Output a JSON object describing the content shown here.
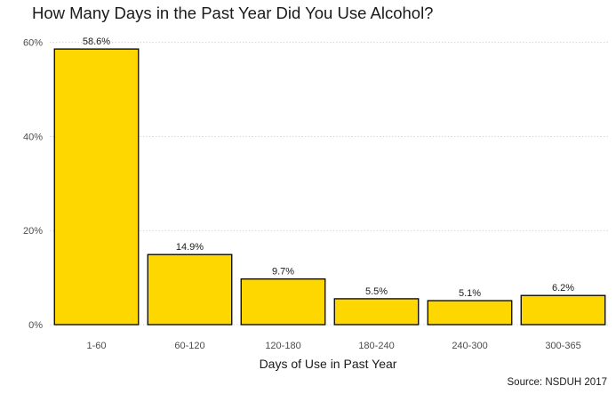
{
  "chart_data": {
    "type": "bar",
    "title": "How Many Days in the Past Year Did You Use Alcohol?",
    "xlabel": "Days of Use in Past Year",
    "ylabel": "",
    "caption": "Source: NSDUH 2017",
    "categories": [
      "1-60",
      "60-120",
      "120-180",
      "180-240",
      "240-300",
      "300-365"
    ],
    "values": [
      58.6,
      14.9,
      9.7,
      5.5,
      5.1,
      6.2
    ],
    "data_labels": [
      "58.6%",
      "14.9%",
      "9.7%",
      "5.5%",
      "5.1%",
      "6.2%"
    ],
    "yticks": [
      0,
      20,
      40,
      60
    ],
    "ytick_labels": [
      "0%",
      "20%",
      "40%",
      "60%"
    ],
    "ylim": [
      0,
      60.7
    ],
    "grid": "horizontal dotted",
    "legend": "none",
    "bar_color": "#FFD700",
    "bar_outline": "#000000",
    "grid_color": "#cccccc"
  }
}
